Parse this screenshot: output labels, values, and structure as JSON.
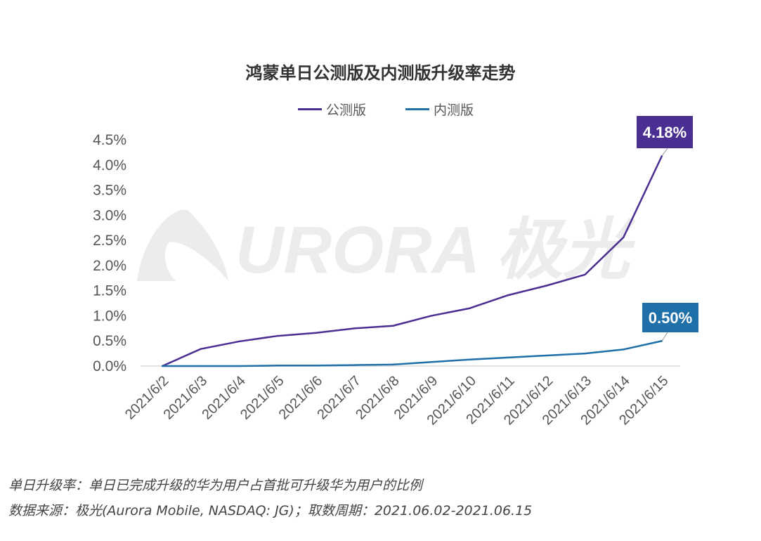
{
  "chart_data": {
    "type": "line",
    "title": "鸿蒙单日公测版及内测版升级率走势",
    "categories": [
      "2021/6/2",
      "2021/6/3",
      "2021/6/4",
      "2021/6/5",
      "2021/6/6",
      "2021/6/7",
      "2021/6/8",
      "2021/6/9",
      "2021/6/10",
      "2021/6/11",
      "2021/6/12",
      "2021/6/13",
      "2021/6/14",
      "2021/6/15"
    ],
    "y_ticks": [
      "0.0%",
      "0.5%",
      "1.0%",
      "1.5%",
      "2.0%",
      "2.5%",
      "3.0%",
      "3.5%",
      "4.0%",
      "4.5%"
    ],
    "ylim": [
      0,
      4.5
    ],
    "y_unit": "%",
    "grid": false,
    "legend_position": "top",
    "series": [
      {
        "name": "公测版",
        "color": "#4b2e91",
        "values": [
          0,
          0.34,
          0.49,
          0.6,
          0.66,
          0.75,
          0.8,
          1.0,
          1.15,
          1.41,
          1.6,
          1.82,
          2.56,
          4.18
        ],
        "end_label": "4.18%"
      },
      {
        "name": "内测版",
        "color": "#1f6fa8",
        "values": [
          0,
          0,
          0,
          0.01,
          0.01,
          0.02,
          0.03,
          0.08,
          0.13,
          0.17,
          0.21,
          0.25,
          0.33,
          0.5
        ],
        "end_label": "0.50%"
      }
    ]
  },
  "watermark": {
    "text": "URORA 极光",
    "color": "#ececec"
  },
  "footnotes": {
    "definition": "单日升级率：单日已完成升级的华为用户占首批可升级华为用户的比例",
    "source": "数据来源：极光(Aurora Mobile, NASDAQ: JG)；取数周期：2021.06.02-2021.06.15"
  }
}
